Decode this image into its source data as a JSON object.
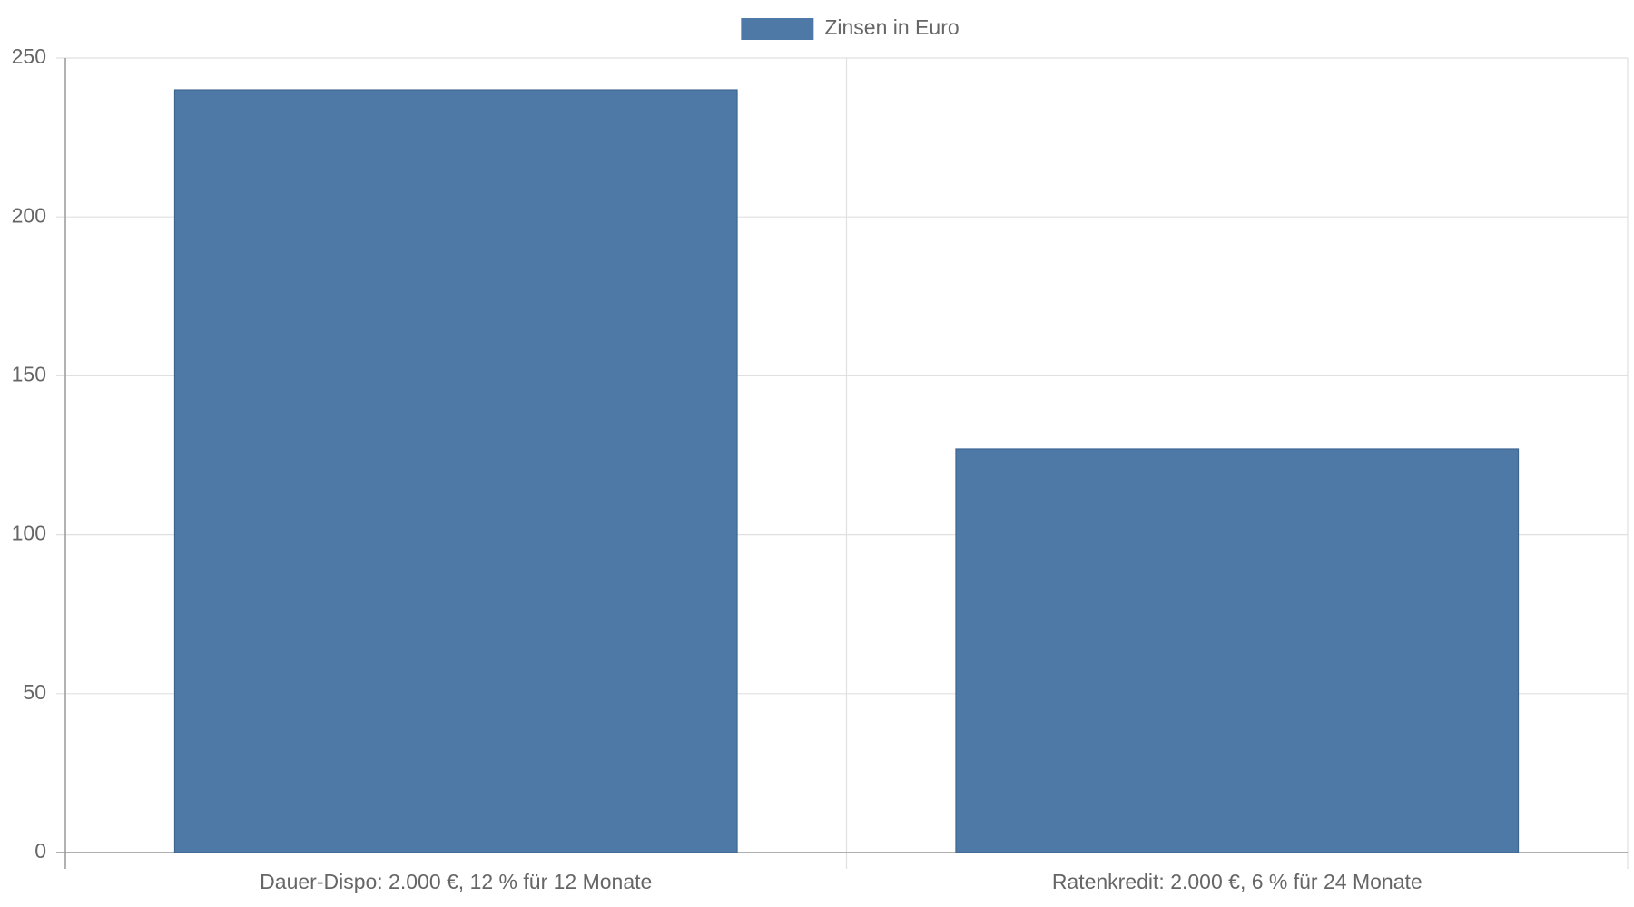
{
  "chart_data": {
    "type": "bar",
    "categories": [
      "Dauer-Dispo: 2.000 €, 12 % für 12 Monate",
      "Ratenkredit: 2.000 €, 6 % für 24 Monate"
    ],
    "series": [
      {
        "name": "Zinsen in Euro",
        "color": "#4e79a7",
        "values": [
          240,
          127
        ]
      }
    ],
    "ylim": [
      0,
      250
    ],
    "yticks": [
      0,
      50,
      100,
      150,
      200,
      250
    ],
    "grid": true,
    "legend": "top"
  }
}
